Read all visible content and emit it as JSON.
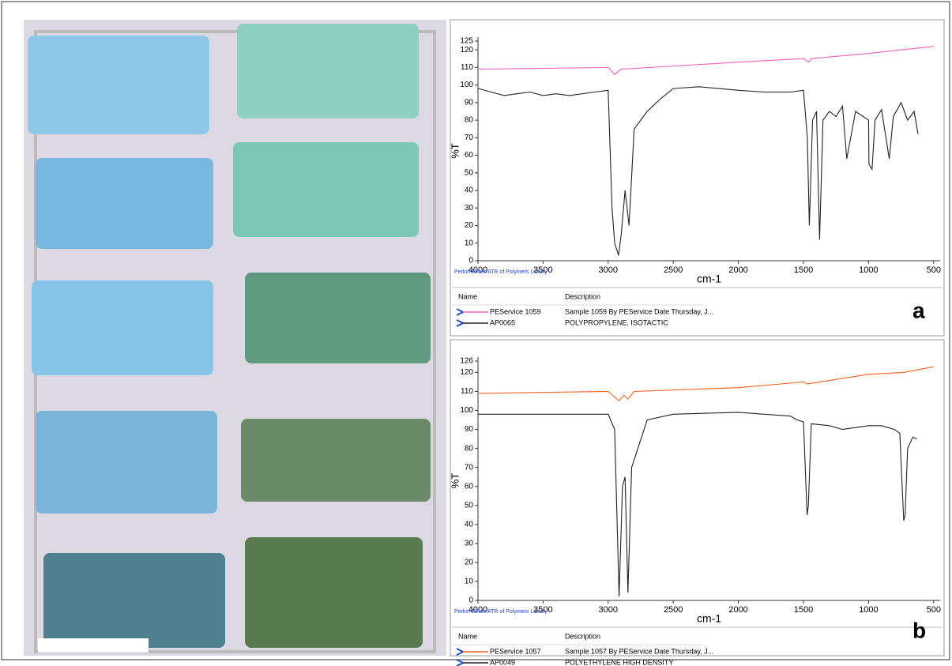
{
  "chart_data": [
    {
      "type": "line",
      "panel_label": "a",
      "library": "Perkin-Elmer ATR of Polymers Library",
      "xlabel": "cm-1",
      "ylabel": "%T",
      "legend_columns": [
        "Name",
        "Description"
      ],
      "xlim": [
        4000,
        450
      ],
      "xticks": [
        4000,
        3500,
        3000,
        2500,
        2000,
        1500,
        1000,
        500
      ],
      "ylim": [
        0,
        125
      ],
      "yticks": [
        0,
        10,
        20,
        30,
        40,
        50,
        60,
        70,
        80,
        90,
        100,
        110,
        120,
        125
      ],
      "series": [
        {
          "name": "PEService 1059",
          "description": "Sample 1059 By PEService Date Thursday, J...",
          "color": "#f060c0",
          "x": [
            4000,
            3000,
            2950,
            2920,
            2900,
            2000,
            1500,
            1460,
            1440,
            1000,
            500
          ],
          "values": [
            109,
            110,
            106,
            108,
            109,
            113,
            115,
            113,
            115,
            118,
            122
          ]
        },
        {
          "name": "AP0065",
          "description": "POLYPROPYLENE, ISOTACTIC",
          "color": "#222222",
          "x": [
            4000,
            3900,
            3800,
            3700,
            3600,
            3500,
            3400,
            3300,
            3100,
            3000,
            2970,
            2950,
            2920,
            2900,
            2870,
            2840,
            2800,
            2700,
            2600,
            2500,
            2300,
            2000,
            1800,
            1600,
            1500,
            1470,
            1455,
            1430,
            1400,
            1376,
            1350,
            1300,
            1250,
            1200,
            1167,
            1100,
            1000,
            997,
            973,
            950,
            900,
            841,
            810,
            750,
            700,
            650,
            620
          ],
          "values": [
            98,
            96,
            94,
            95,
            96,
            94,
            95,
            94,
            96,
            97,
            30,
            10,
            3,
            15,
            40,
            20,
            75,
            85,
            92,
            98,
            99,
            97,
            96,
            96,
            97,
            70,
            20,
            80,
            85,
            12,
            80,
            85,
            82,
            88,
            58,
            85,
            80,
            55,
            52,
            80,
            86,
            58,
            82,
            90,
            80,
            85,
            72
          ]
        }
      ]
    },
    {
      "type": "line",
      "panel_label": "b",
      "library": "Perkin-Elmer ATR of Polymers Library",
      "xlabel": "cm-1",
      "ylabel": "%T",
      "legend_columns": [
        "Name",
        "Description"
      ],
      "xlim": [
        4000,
        450
      ],
      "xticks": [
        4000,
        3500,
        3000,
        2500,
        2000,
        1500,
        1000,
        500
      ],
      "ylim": [
        0,
        126
      ],
      "yticks": [
        0,
        10,
        20,
        30,
        40,
        50,
        60,
        70,
        80,
        90,
        100,
        110,
        120,
        126
      ],
      "series": [
        {
          "name": "PEService 1057",
          "description": "Sample 1057 By PEService Date Thursday, J...",
          "color": "#f06020",
          "x": [
            4000,
            3000,
            2916,
            2880,
            2848,
            2800,
            2000,
            1500,
            1470,
            1000,
            730,
            500
          ],
          "values": [
            109,
            110,
            105,
            108,
            106,
            110,
            112,
            115,
            114,
            119,
            120,
            123
          ]
        },
        {
          "name": "AP0049",
          "description": "POLYETHYLENE HIGH DENSITY",
          "color": "#222222",
          "x": [
            4000,
            3500,
            3000,
            2950,
            2916,
            2890,
            2870,
            2848,
            2820,
            2700,
            2500,
            2000,
            1800,
            1600,
            1550,
            1500,
            1472,
            1462,
            1440,
            1300,
            1200,
            1000,
            900,
            800,
            760,
            730,
            719,
            700,
            660,
            630
          ],
          "values": [
            98,
            98,
            98,
            90,
            2,
            60,
            65,
            4,
            70,
            95,
            98,
            99,
            98,
            97,
            95,
            94,
            45,
            50,
            93,
            92,
            90,
            92,
            92,
            90,
            88,
            42,
            45,
            80,
            86,
            85
          ]
        }
      ]
    }
  ]
}
